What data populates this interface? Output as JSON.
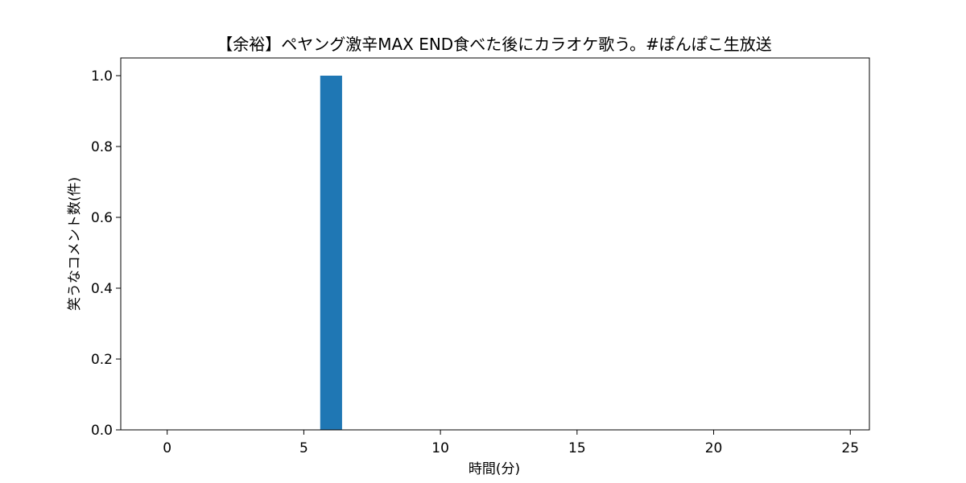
{
  "chart_data": {
    "type": "bar",
    "title": "【余裕】ペヤング激辛MAX END食べた後にカラオケ歌う。#ぽんぽこ生放送",
    "xlabel": "時間(分)",
    "ylabel": "笑うなコメント数(件)",
    "x": [
      6
    ],
    "values": [
      1.0
    ],
    "bar_width": 0.8,
    "xlim": [
      -1.7,
      25.7
    ],
    "ylim": [
      0,
      1.05
    ],
    "xticks": [
      0,
      5,
      10,
      15,
      20,
      25
    ],
    "yticks": [
      "0.0",
      "0.2",
      "0.4",
      "0.6",
      "0.8",
      "1.0"
    ],
    "bar_color": "#1f77b4",
    "grid": false
  }
}
